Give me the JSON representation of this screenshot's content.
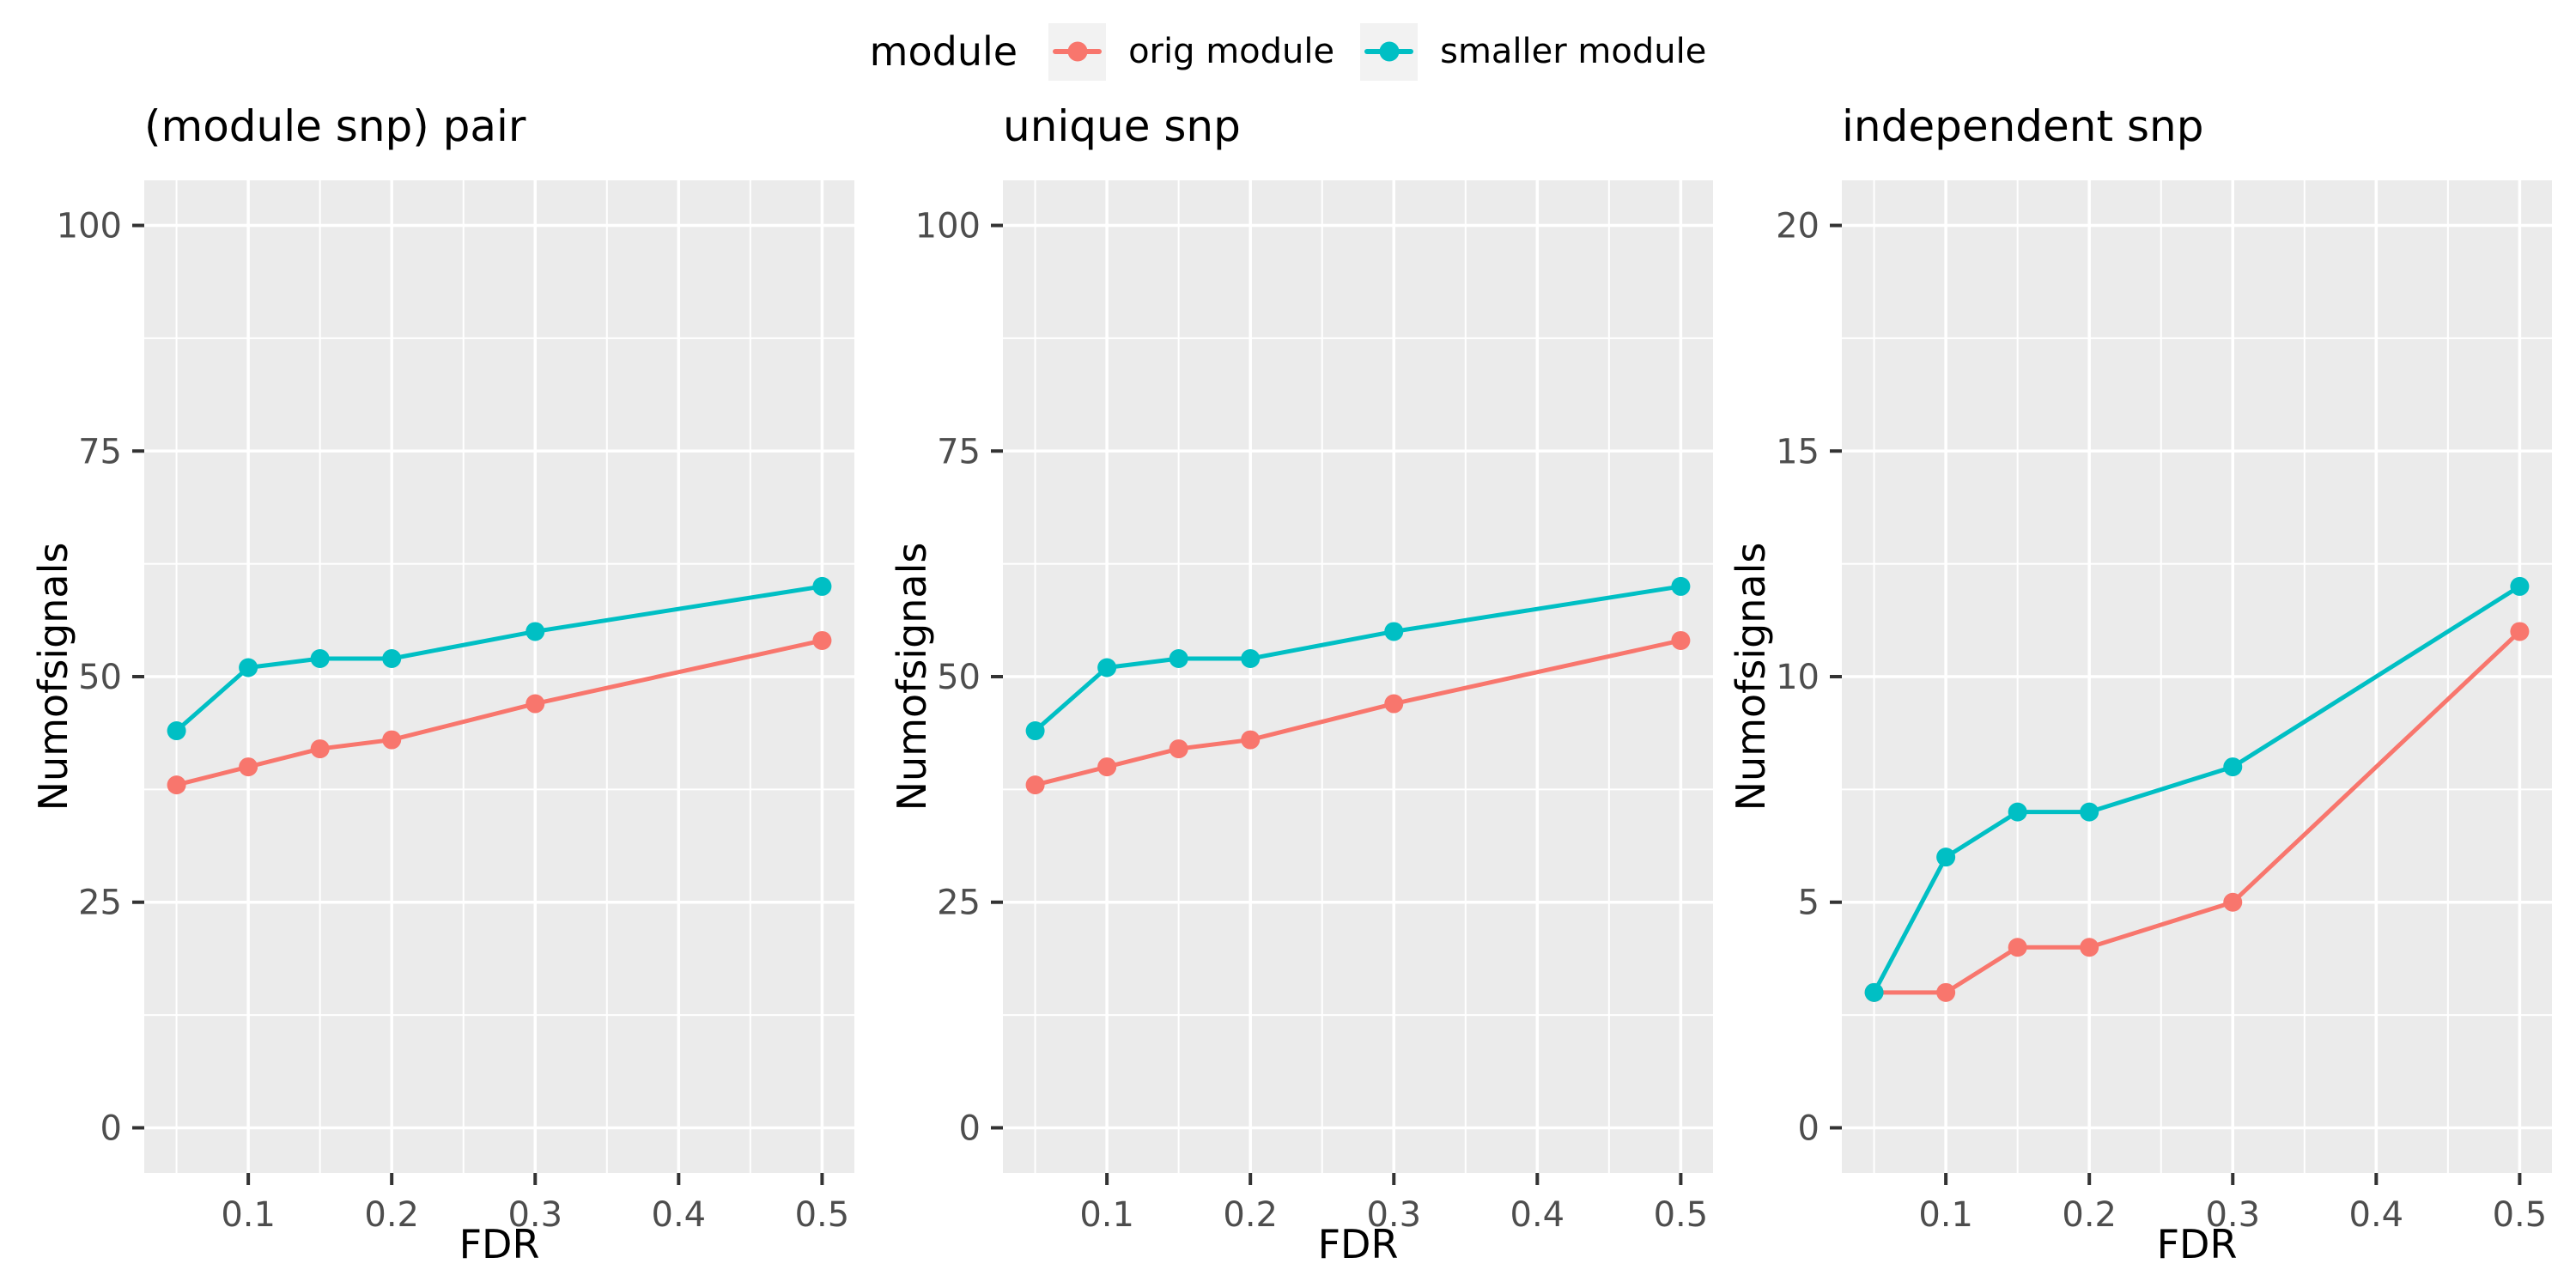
{
  "legend": {
    "title": "module",
    "items": [
      {
        "name": "orig module",
        "color": "#F8766D"
      },
      {
        "name": "smaller module",
        "color": "#00BFC4"
      }
    ]
  },
  "style": {
    "panel_bg": "#EBEBEB",
    "grid_color": "#FFFFFF",
    "tick_mark_color": "#333333",
    "tick_label_color": "#4D4D4D",
    "key_bg": "#F2F2F2",
    "text_color": "#000000"
  },
  "chart_data": [
    {
      "type": "line",
      "title": "(module snp) pair",
      "xlabel": "FDR",
      "ylabel": "Numofsignals",
      "x": [
        0.05,
        0.1,
        0.15,
        0.2,
        0.3,
        0.5
      ],
      "series": [
        {
          "name": "orig module",
          "color": "#F8766D",
          "values": [
            38,
            40,
            42,
            43,
            47,
            54
          ]
        },
        {
          "name": "smaller module",
          "color": "#00BFC4",
          "values": [
            44,
            51,
            52,
            52,
            55,
            60
          ]
        }
      ],
      "xlim": [
        0.0275,
        0.5225
      ],
      "ylim": [
        -5,
        105
      ],
      "xticks": [
        0.1,
        0.2,
        0.3,
        0.4,
        0.5
      ],
      "xtick_labels": [
        "0.1",
        "0.2",
        "0.3",
        "0.4",
        "0.5"
      ],
      "xminor": [
        0.05,
        0.15,
        0.25,
        0.35,
        0.45
      ],
      "yticks": [
        0,
        25,
        50,
        75,
        100
      ],
      "ytick_labels": [
        "0",
        "25",
        "50",
        "75",
        "100"
      ],
      "yminor": [
        12.5,
        37.5,
        62.5,
        87.5
      ],
      "grid": true,
      "legend_position": "top"
    },
    {
      "type": "line",
      "title": "unique snp",
      "xlabel": "FDR",
      "ylabel": "Numofsignals",
      "x": [
        0.05,
        0.1,
        0.15,
        0.2,
        0.3,
        0.5
      ],
      "series": [
        {
          "name": "orig module",
          "color": "#F8766D",
          "values": [
            38,
            40,
            42,
            43,
            47,
            54
          ]
        },
        {
          "name": "smaller module",
          "color": "#00BFC4",
          "values": [
            44,
            51,
            52,
            52,
            55,
            60
          ]
        }
      ],
      "xlim": [
        0.0275,
        0.5225
      ],
      "ylim": [
        -5,
        105
      ],
      "xticks": [
        0.1,
        0.2,
        0.3,
        0.4,
        0.5
      ],
      "xtick_labels": [
        "0.1",
        "0.2",
        "0.3",
        "0.4",
        "0.5"
      ],
      "xminor": [
        0.05,
        0.15,
        0.25,
        0.35,
        0.45
      ],
      "yticks": [
        0,
        25,
        50,
        75,
        100
      ],
      "ytick_labels": [
        "0",
        "25",
        "50",
        "75",
        "100"
      ],
      "yminor": [
        12.5,
        37.5,
        62.5,
        87.5
      ],
      "grid": true,
      "legend_position": "top"
    },
    {
      "type": "line",
      "title": "independent snp",
      "xlabel": "FDR",
      "ylabel": "Numofsignals",
      "x": [
        0.05,
        0.1,
        0.15,
        0.2,
        0.3,
        0.5
      ],
      "series": [
        {
          "name": "orig module",
          "color": "#F8766D",
          "values": [
            3,
            3,
            4,
            4,
            5,
            11
          ]
        },
        {
          "name": "smaller module",
          "color": "#00BFC4",
          "values": [
            3,
            6,
            7,
            7,
            8,
            12
          ]
        }
      ],
      "xlim": [
        0.0275,
        0.5225
      ],
      "ylim": [
        -1,
        21
      ],
      "xticks": [
        0.1,
        0.2,
        0.3,
        0.4,
        0.5
      ],
      "xtick_labels": [
        "0.1",
        "0.2",
        "0.3",
        "0.4",
        "0.5"
      ],
      "xminor": [
        0.05,
        0.15,
        0.25,
        0.35,
        0.45
      ],
      "yticks": [
        0,
        5,
        10,
        15,
        20
      ],
      "ytick_labels": [
        "0",
        "5",
        "10",
        "15",
        "20"
      ],
      "yminor": [
        2.5,
        7.5,
        12.5,
        17.5
      ],
      "grid": true,
      "legend_position": "top"
    }
  ]
}
